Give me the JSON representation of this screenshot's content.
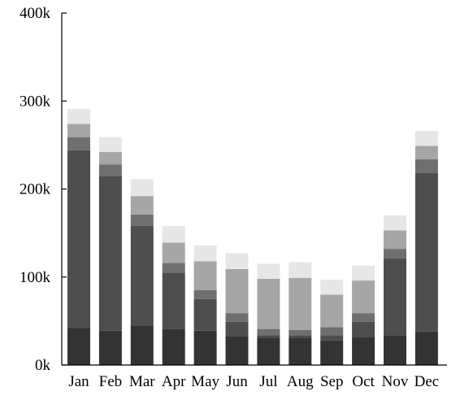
{
  "chart_data": {
    "type": "bar",
    "stacked": true,
    "title": "",
    "xlabel": "",
    "ylabel": "",
    "categories": [
      "Jan",
      "Feb",
      "Mar",
      "Apr",
      "May",
      "Jun",
      "Jul",
      "Aug",
      "Sep",
      "Oct",
      "Nov",
      "Dec"
    ],
    "ylim": [
      0,
      400000
    ],
    "yticks": [
      0,
      100000,
      200000,
      300000,
      400000
    ],
    "ytick_labels": [
      "0k",
      "100k",
      "200k",
      "300k",
      "400k"
    ],
    "grid": false,
    "legend": "none",
    "series": [
      {
        "color": "#333333",
        "values": [
          42000,
          39000,
          45000,
          41000,
          39000,
          33000,
          31000,
          31000,
          28000,
          32000,
          34000,
          38000
        ]
      },
      {
        "color": "#4d4d4d",
        "values": [
          202000,
          176000,
          113000,
          64000,
          36000,
          16000,
          3000,
          3000,
          6000,
          17000,
          87000,
          180000
        ]
      },
      {
        "color": "#6f6f6f",
        "values": [
          15000,
          13000,
          13000,
          11000,
          10000,
          10000,
          7000,
          6000,
          9000,
          10000,
          11000,
          16000
        ]
      },
      {
        "color": "#a6a6a6",
        "values": [
          15000,
          14000,
          21000,
          23000,
          33000,
          50000,
          57000,
          59000,
          37000,
          37000,
          21000,
          15000
        ]
      },
      {
        "color": "#e6e6e6",
        "values": [
          17000,
          17000,
          19000,
          19000,
          18000,
          18000,
          17000,
          18000,
          17000,
          17000,
          17000,
          17000
        ]
      }
    ]
  }
}
